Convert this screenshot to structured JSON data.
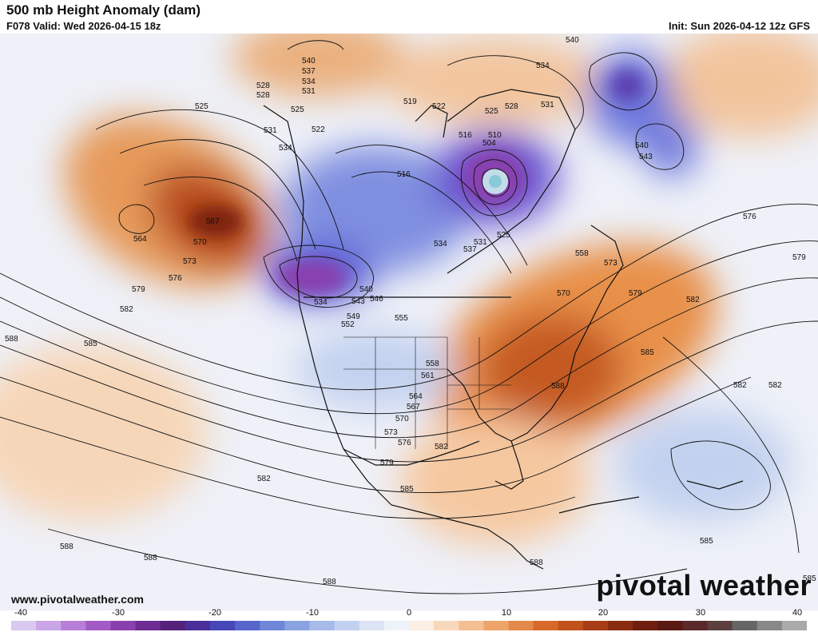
{
  "header": {
    "title": "500 mb Height Anomaly (dam)",
    "valid": "F078 Valid: Wed 2026-04-15 18z",
    "init": "Init: Sun 2026-04-12 12z GFS"
  },
  "footer": {
    "site": "www.pivotalweather.com",
    "brand": "pivotal weather"
  },
  "colorbar": {
    "ticks": [
      "-40",
      "-30",
      "-20",
      "-10",
      "0",
      "10",
      "20",
      "30",
      "40"
    ],
    "colors": [
      "#d9c9ee",
      "#c9a6e6",
      "#b87fd9",
      "#a25bc6",
      "#8a3fae",
      "#6d2d93",
      "#54227a",
      "#4a2f9a",
      "#4847b8",
      "#5866cc",
      "#6f86d8",
      "#8aa2e0",
      "#a6bbe8",
      "#c2d1ef",
      "#dbe3f4",
      "#eef2f9",
      "#fbeee3",
      "#f8d8bc",
      "#f4bf92",
      "#eda56b",
      "#e48949",
      "#d76a2a",
      "#c2521c",
      "#a63d16",
      "#8a2c12",
      "#6e1f10",
      "#581a12",
      "#5a2a2a",
      "#5c4040",
      "#666666",
      "#888888",
      "#aaaaaa"
    ]
  },
  "map": {
    "contour_labels": [
      "540",
      "537",
      "534",
      "531",
      "528",
      "525",
      "522",
      "519",
      "516",
      "510",
      "504",
      "564",
      "567",
      "570",
      "573",
      "576",
      "579",
      "582",
      "585",
      "588",
      "543",
      "546",
      "549",
      "552",
      "555",
      "558",
      "561"
    ]
  }
}
